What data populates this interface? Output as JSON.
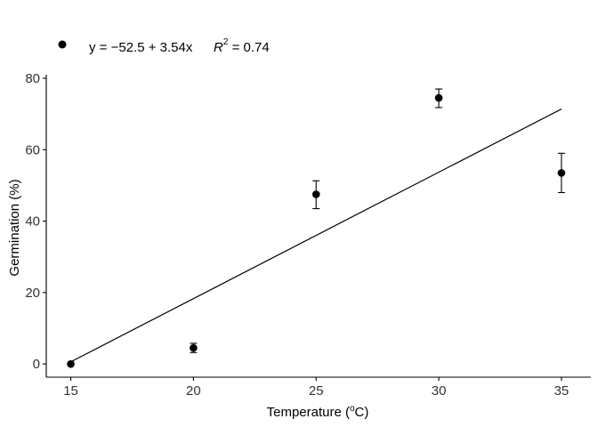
{
  "chart_data": {
    "type": "scatter",
    "xlabel_prefix": "Temperature (",
    "xlabel_sup": "o",
    "xlabel_suffix": "C)",
    "ylabel": "Germination (%)",
    "xlim": [
      14,
      36.2
    ],
    "ylim": [
      -3.7,
      81
    ],
    "xticks": [
      15,
      20,
      25,
      30,
      35
    ],
    "yticks": [
      0,
      20,
      40,
      60,
      80
    ],
    "grid": false,
    "legend_position": "top-left",
    "legend": {
      "equation": "y = −52.5 + 3.54x",
      "r2_symbol": "R",
      "r2_exponent": "2",
      "r2_value": " = 0.74"
    },
    "points": [
      {
        "x": 15,
        "y": 0.0,
        "err_low": 0.0,
        "err_high": 0.0
      },
      {
        "x": 20,
        "y": 4.5,
        "err_low": 3.2,
        "err_high": 5.8
      },
      {
        "x": 25,
        "y": 47.5,
        "err_low": 43.5,
        "err_high": 51.3
      },
      {
        "x": 30,
        "y": 74.5,
        "err_low": 71.8,
        "err_high": 77.0
      },
      {
        "x": 35,
        "y": 53.5,
        "err_low": 48.0,
        "err_high": 59.0
      }
    ],
    "fit": {
      "intercept": -52.5,
      "slope": 3.54,
      "x_range": [
        15,
        35
      ]
    },
    "colors": {
      "points": "#000000",
      "line": "#000000",
      "axis": "#000000",
      "tick_text": "#333333"
    }
  }
}
